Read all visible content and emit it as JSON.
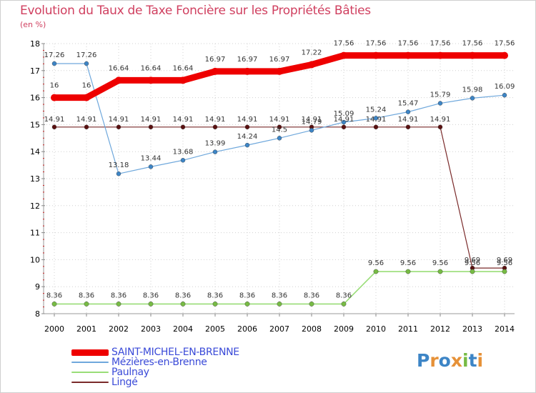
{
  "chart_data": {
    "type": "line",
    "title": "Evolution du Taux de Taxe Foncière sur les Propriétés Bâties",
    "ylabel": "(en %)",
    "xlabel": "",
    "categories": [
      "2000",
      "2001",
      "2002",
      "2003",
      "2004",
      "2005",
      "2006",
      "2007",
      "2008",
      "2009",
      "2010",
      "2011",
      "2012",
      "2013",
      "2014"
    ],
    "ylim": [
      8,
      18
    ],
    "yticks": [
      "8",
      "9",
      "10",
      "11",
      "12",
      "13",
      "14",
      "15",
      "16",
      "17",
      "18"
    ],
    "series": [
      {
        "name": "SAINT-MICHEL-EN-BRENNE",
        "color": "#ee0000",
        "marker_color": "#ee0000",
        "values": [
          16,
          16,
          16.64,
          16.64,
          16.64,
          16.97,
          16.97,
          16.97,
          17.22,
          17.56,
          17.56,
          17.56,
          17.56,
          17.56,
          17.56
        ],
        "labels": [
          "16",
          "16",
          "16.64",
          "16.64",
          "16.64",
          "16.97",
          "16.97",
          "16.97",
          "17.22",
          "17.56",
          "17.56",
          "17.56",
          "17.56",
          "17.56",
          "17.56"
        ]
      },
      {
        "name": "Mézières-en-Brenne",
        "color": "#6fa8dc",
        "marker_color": "#3d85c6",
        "values": [
          17.26,
          17.26,
          13.18,
          13.44,
          13.68,
          13.99,
          14.24,
          14.5,
          14.79,
          15.09,
          15.24,
          15.47,
          15.79,
          15.98,
          16.09
        ],
        "labels": [
          "17.26",
          "17.26",
          "13.18",
          "13.44",
          "13.68",
          "13.99",
          "14.24",
          "14.5",
          "14.79",
          "15.09",
          "15.24",
          "15.47",
          "15.79",
          "15.98",
          "16.09"
        ]
      },
      {
        "name": "Paulnay",
        "color": "#99dd77",
        "marker_color": "#77bb44",
        "values": [
          8.36,
          8.36,
          8.36,
          8.36,
          8.36,
          8.36,
          8.36,
          8.36,
          8.36,
          8.36,
          9.56,
          9.56,
          9.56,
          9.56,
          9.56
        ],
        "labels": [
          "8.36",
          "8.36",
          "8.36",
          "8.36",
          "8.36",
          "8.36",
          "8.36",
          "8.36",
          "8.36",
          "8.36",
          "9.56",
          "9.56",
          "9.56",
          "9.56",
          "9.56"
        ]
      },
      {
        "name": "Lingé",
        "color": "#7a2a2a",
        "marker_color": "#5a1010",
        "values": [
          14.91,
          14.91,
          14.91,
          14.91,
          14.91,
          14.91,
          14.91,
          14.91,
          14.91,
          14.91,
          14.91,
          14.91,
          14.91,
          9.69,
          9.69
        ],
        "labels": [
          "14.91",
          "14.91",
          "14.91",
          "14.91",
          "14.91",
          "14.91",
          "14.91",
          "14.91",
          "14.91",
          "14.91",
          "14.91",
          "14.91",
          "14.91",
          "9.69",
          "9.69"
        ]
      }
    ]
  },
  "logo": {
    "text": "Proxiti",
    "letter_colors": [
      "#3d85c6",
      "#e69138",
      "#3d85c6",
      "#e69138",
      "#77bb44",
      "#3d85c6",
      "#e69138"
    ]
  }
}
